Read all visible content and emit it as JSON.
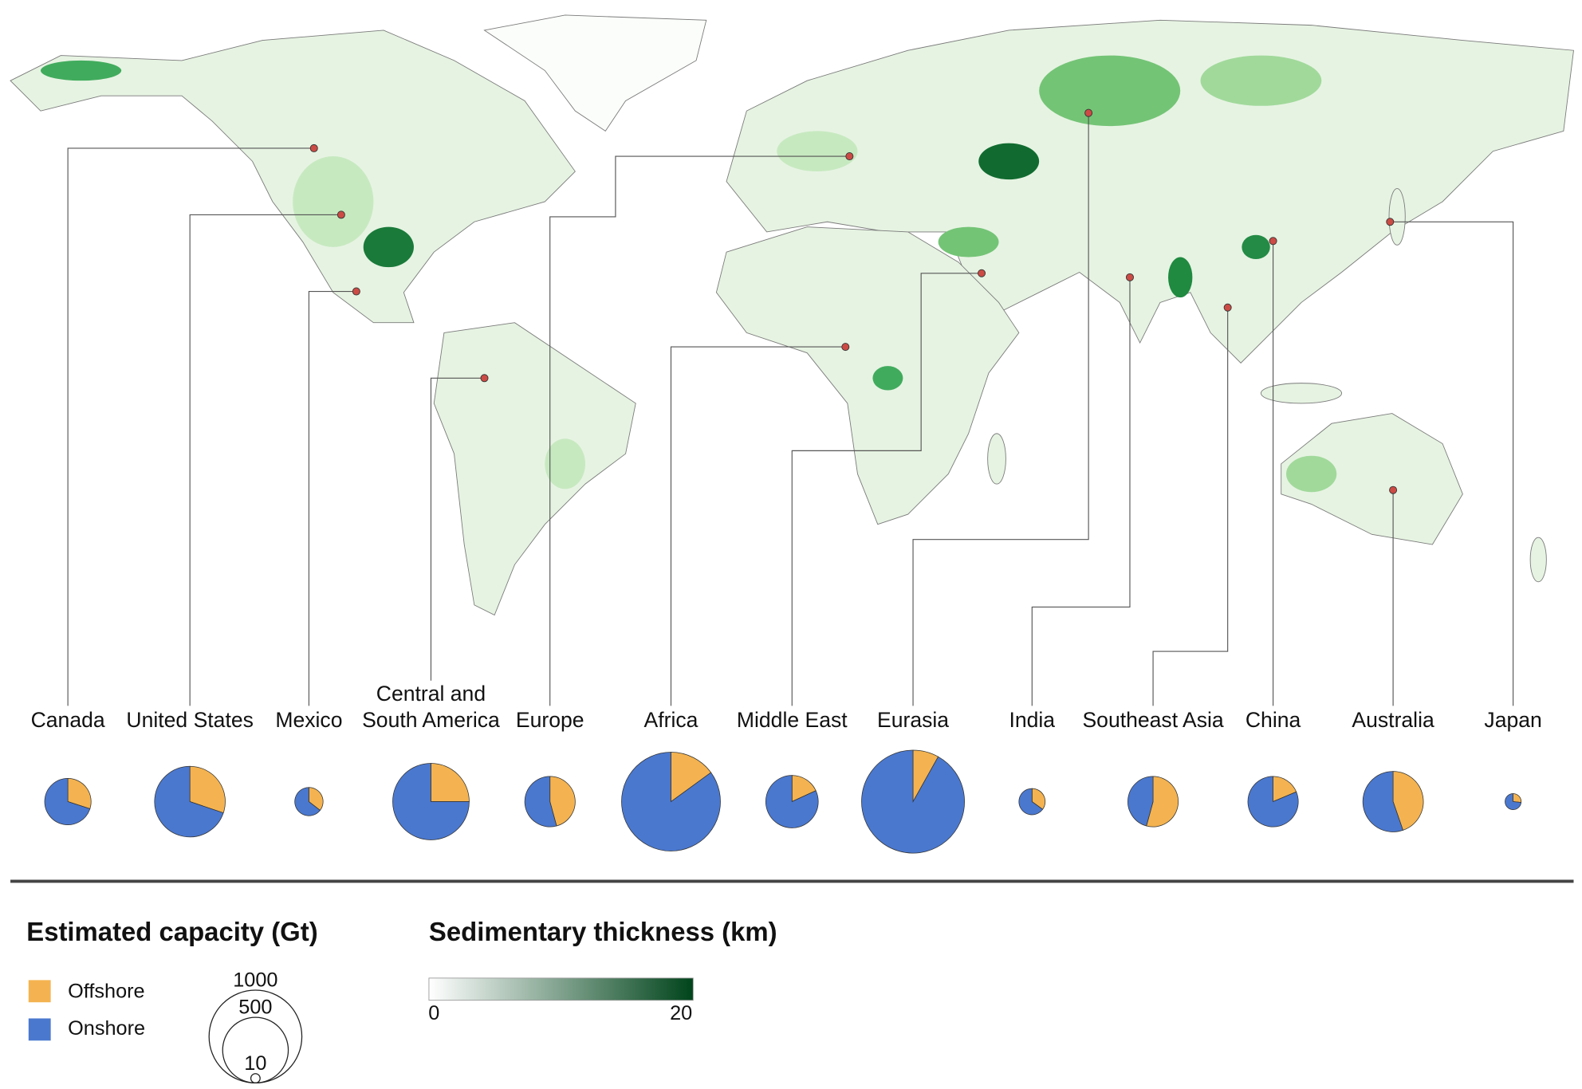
{
  "regions": [
    {
      "name": "Canada",
      "offshore": 75,
      "onshore": 175
    },
    {
      "name": "United States",
      "offshore": 175,
      "onshore": 405
    },
    {
      "name": "Mexico",
      "offshore": 33,
      "onshore": 60
    },
    {
      "name": "Central and South America",
      "offshore": 170,
      "onshore": 510
    },
    {
      "name": "Europe",
      "offshore": 135,
      "onshore": 160
    },
    {
      "name": "Africa",
      "offshore": 170,
      "onshore": 965
    },
    {
      "name": "Middle East",
      "offshore": 58,
      "onshore": 262
    },
    {
      "name": "Eurasia",
      "offshore": 100,
      "onshore": 1130
    },
    {
      "name": "India",
      "offshore": 28,
      "onshore": 52
    },
    {
      "name": "Southeast Asia",
      "offshore": 160,
      "onshore": 135
    },
    {
      "name": "China",
      "offshore": 55,
      "onshore": 240
    },
    {
      "name": "Australia",
      "offshore": 190,
      "onshore": 235
    },
    {
      "name": "Japan",
      "offshore": 8,
      "onshore": 22
    }
  ],
  "legend": {
    "capacity_title": "Estimated capacity (Gt)",
    "offshore_label": "Offshore",
    "onshore_label": "Onshore",
    "offshore_color": "#f4b350",
    "onshore_color": "#4a78cf",
    "size_ticks": [
      1000,
      500,
      10
    ]
  },
  "colorbar": {
    "title": "Sedimentary thickness (km)",
    "lim": [
      0,
      20
    ],
    "ticks": [
      0,
      20
    ],
    "colors": [
      "#ffffff",
      "#00441b"
    ]
  }
}
